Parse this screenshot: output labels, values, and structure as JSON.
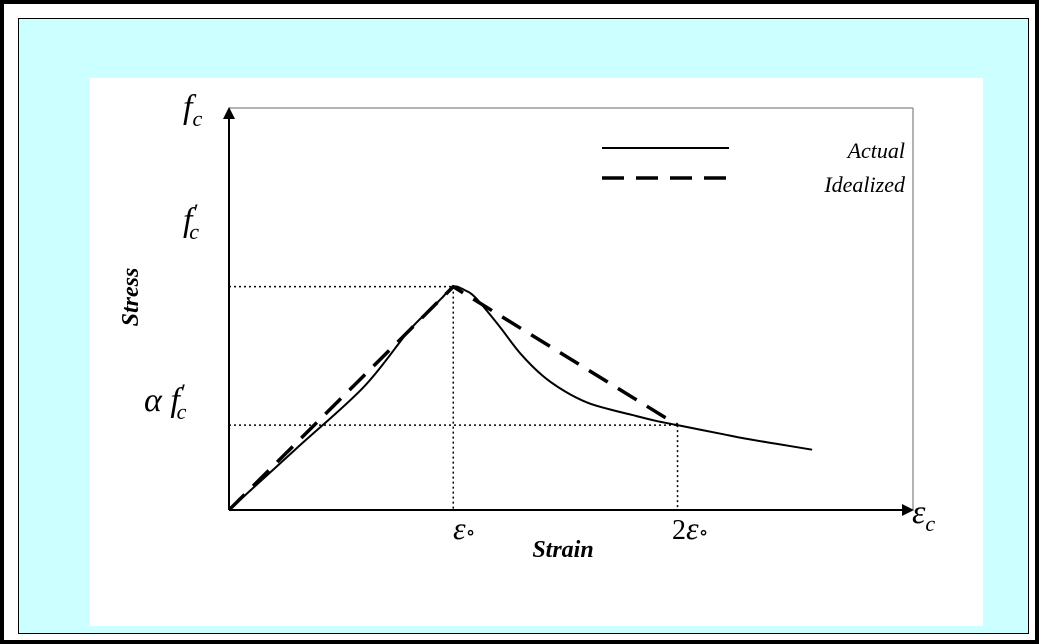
{
  "chart_data": {
    "type": "line",
    "title": "",
    "xlabel": "Strain",
    "ylabel": "Stress",
    "x_axis_symbol": "εc",
    "y_axis_symbol": "fc",
    "xlim": [
      0,
      3.05
    ],
    "ylim": [
      0,
      1.8
    ],
    "x_ticks": [
      {
        "value": 1,
        "label": "ε∘"
      },
      {
        "value": 2,
        "label": "2ε∘"
      }
    ],
    "y_ticks": [
      {
        "value": 1,
        "label": "f′c"
      },
      {
        "value": 0.38,
        "label": "α f′c"
      }
    ],
    "guide_lines": [
      {
        "name": "peak",
        "x": 1,
        "y": 1
      },
      {
        "name": "alpha",
        "x": 2,
        "y": 0.38
      }
    ],
    "legend_position": "top-right",
    "series": [
      {
        "name": "Actual",
        "style": "solid",
        "x": [
          0,
          0.3,
          0.6,
          0.8,
          0.9,
          0.95,
          1.0,
          1.05,
          1.1,
          1.2,
          1.3,
          1.4,
          1.5,
          1.6,
          1.7,
          1.8,
          1.9,
          2.0,
          2.1,
          2.2,
          2.3,
          2.45,
          2.6
        ],
        "y": [
          0,
          0.275,
          0.55,
          0.8,
          0.9,
          0.95,
          1.0,
          0.985,
          0.95,
          0.83,
          0.7,
          0.6,
          0.53,
          0.48,
          0.45,
          0.425,
          0.4,
          0.38,
          0.36,
          0.34,
          0.32,
          0.295,
          0.27
        ]
      },
      {
        "name": "Idealized",
        "style": "dashed",
        "x": [
          0,
          1,
          2
        ],
        "y": [
          0,
          1,
          0.38
        ]
      }
    ],
    "grid": false
  }
}
